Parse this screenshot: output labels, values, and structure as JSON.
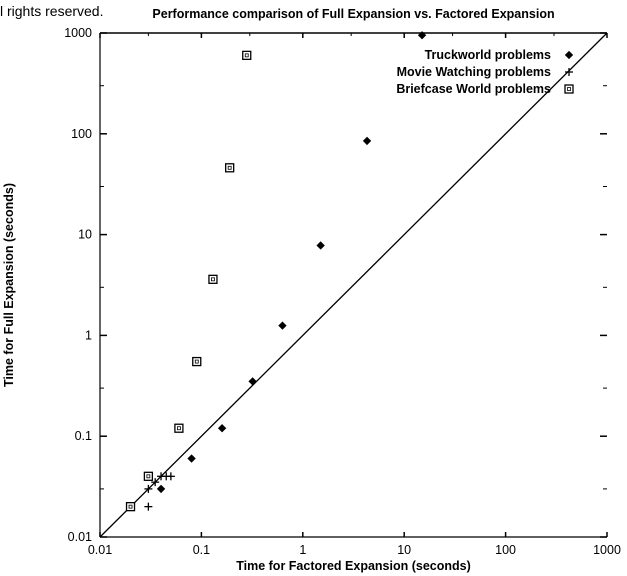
{
  "copyright": "l rights reserved.",
  "chart_data": {
    "type": "scatter",
    "title": "Performance comparison of Full Expansion vs. Factored Expansion",
    "xlabel": "Time for Factored Expansion (seconds)",
    "ylabel": "Time for Full Expansion (seconds)",
    "xscale": "log",
    "yscale": "log",
    "xlim": [
      0.01,
      1000
    ],
    "ylim": [
      0.01,
      1000
    ],
    "x_ticks": [
      "0.01",
      "0.1",
      "1",
      "10",
      "100",
      "1000"
    ],
    "y_ticks": [
      "0.01",
      "0.1",
      "1",
      "10",
      "100",
      "1000"
    ],
    "legend_position": "top-right",
    "reference_line": "y = x",
    "series": [
      {
        "name": "Truckworld problems",
        "marker": "diamond",
        "points": [
          [
            0.04,
            0.03
          ],
          [
            0.08,
            0.06
          ],
          [
            0.16,
            0.12
          ],
          [
            0.32,
            0.35
          ],
          [
            0.63,
            1.25
          ],
          [
            1.5,
            7.8
          ],
          [
            4.3,
            85
          ],
          [
            15,
            950
          ]
        ]
      },
      {
        "name": "Movie Watching problems",
        "marker": "plus",
        "points": [
          [
            0.02,
            0.02
          ],
          [
            0.03,
            0.02
          ],
          [
            0.03,
            0.03
          ],
          [
            0.035,
            0.035
          ],
          [
            0.04,
            0.04
          ],
          [
            0.045,
            0.04
          ],
          [
            0.05,
            0.04
          ]
        ]
      },
      {
        "name": "Briefcase World problems",
        "marker": "square",
        "points": [
          [
            0.02,
            0.02
          ],
          [
            0.03,
            0.04
          ],
          [
            0.06,
            0.12
          ],
          [
            0.09,
            0.55
          ],
          [
            0.13,
            3.6
          ],
          [
            0.19,
            46
          ],
          [
            0.28,
            600
          ]
        ]
      }
    ]
  }
}
